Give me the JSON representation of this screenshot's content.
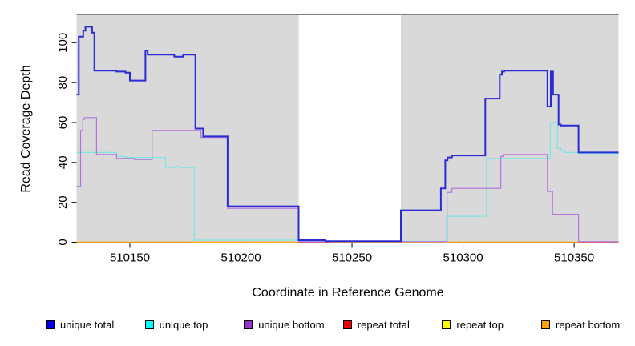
{
  "figure": {
    "background": "#ffffff",
    "plot_background": "#d9d9d9",
    "gap_background": "#ffffff",
    "top_border_color": "#808080"
  },
  "chart_data": {
    "type": "line",
    "title": "",
    "xlabel": "Coordinate in Reference Genome",
    "ylabel": "Read Coverage Depth",
    "xlim": [
      510126,
      510370
    ],
    "ylim": [
      0,
      114
    ],
    "grid": false,
    "legend_position": "bottom",
    "x_ticks": [
      510150,
      510200,
      510250,
      510300,
      510350
    ],
    "y_ticks": [
      0,
      20,
      40,
      60,
      80,
      100
    ],
    "no_data_gap": {
      "from": 510226,
      "to": 510272
    },
    "series": [
      {
        "name": "repeat top",
        "color": "#ffff33",
        "width": 1.2,
        "points": [
          [
            510126,
            0
          ],
          [
            510370,
            0
          ]
        ]
      },
      {
        "name": "repeat total",
        "color": "#e05555",
        "width": 1.2,
        "points": [
          [
            510126,
            0
          ],
          [
            510370,
            0
          ]
        ]
      },
      {
        "name": "repeat bottom",
        "color": "#ffa514",
        "width": 1.5,
        "points": [
          [
            510126,
            0
          ],
          [
            510226,
            0
          ],
          null,
          [
            510240,
            0
          ],
          [
            510352,
            0
          ]
        ]
      },
      {
        "name": "unique top",
        "color": "#7ae6e6",
        "width": 1.2,
        "points": [
          [
            510126,
            45
          ],
          [
            510144,
            45
          ],
          [
            510144,
            43
          ],
          [
            510148,
            43
          ],
          [
            510148,
            42.5
          ],
          [
            510166,
            42.5
          ],
          [
            510166,
            37.5
          ],
          [
            510170.5,
            37.5
          ],
          [
            510170.5,
            38
          ],
          [
            510172.5,
            38
          ],
          [
            510172.5,
            37.5
          ],
          [
            510179,
            37.5
          ],
          [
            510179,
            1
          ],
          [
            510226,
            1
          ],
          [
            510226,
            0.4
          ],
          [
            510292.5,
            0.4
          ],
          [
            510292.5,
            13
          ],
          [
            510310.5,
            13
          ],
          [
            510310.5,
            42
          ],
          [
            510339.3,
            42
          ],
          [
            510339.3,
            60
          ],
          [
            510342.5,
            60
          ],
          [
            510342.5,
            47
          ],
          [
            510344,
            47
          ],
          [
            510344,
            46
          ],
          [
            510346,
            46
          ],
          [
            510346,
            45
          ],
          [
            510352,
            45
          ],
          [
            510352,
            44.5
          ],
          [
            510370,
            44.5
          ]
        ]
      },
      {
        "name": "unique bottom",
        "color": "#b273de",
        "width": 1.2,
        "points": [
          [
            510126,
            28
          ],
          [
            510127.8,
            28
          ],
          [
            510127.8,
            56
          ],
          [
            510128.8,
            56
          ],
          [
            510128.8,
            61.5
          ],
          [
            510129.5,
            61.5
          ],
          [
            510129.5,
            62.5
          ],
          [
            510135,
            62.5
          ],
          [
            510135,
            44
          ],
          [
            510144,
            44
          ],
          [
            510144,
            42
          ],
          [
            510152,
            42
          ],
          [
            510152,
            41.5
          ],
          [
            510160,
            41.5
          ],
          [
            510160,
            56
          ],
          [
            510182,
            56
          ],
          [
            510182,
            52.5
          ],
          [
            510194,
            52.5
          ],
          [
            510194,
            17
          ],
          [
            510226,
            17
          ],
          [
            510226,
            0.3
          ],
          [
            510292.8,
            0.3
          ],
          [
            510292.8,
            25
          ],
          [
            510295,
            25
          ],
          [
            510295,
            27
          ],
          [
            510317,
            27
          ],
          [
            510317,
            43
          ],
          [
            510318,
            43
          ],
          [
            510318,
            44
          ],
          [
            510338,
            44
          ],
          [
            510338,
            25.5
          ],
          [
            510340.3,
            25.5
          ],
          [
            510340.3,
            14
          ],
          [
            510352,
            14
          ],
          [
            510352,
            0.3
          ],
          [
            510370,
            0.3
          ]
        ]
      },
      {
        "name": "unique total",
        "color": "#2b2bd5",
        "width": 2,
        "points": [
          [
            510126,
            74
          ],
          [
            510127,
            74
          ],
          [
            510127,
            103
          ],
          [
            510129,
            103
          ],
          [
            510129,
            106
          ],
          [
            510130,
            106
          ],
          [
            510130,
            108
          ],
          [
            510133,
            108
          ],
          [
            510133,
            105
          ],
          [
            510134,
            105
          ],
          [
            510134,
            86
          ],
          [
            510144,
            86
          ],
          [
            510144,
            85.5
          ],
          [
            510148,
            85.5
          ],
          [
            510148,
            85
          ],
          [
            510150,
            85
          ],
          [
            510150,
            81
          ],
          [
            510157,
            81
          ],
          [
            510157,
            96
          ],
          [
            510158,
            96
          ],
          [
            510158,
            94
          ],
          [
            510170,
            94
          ],
          [
            510170,
            93
          ],
          [
            510174,
            93
          ],
          [
            510174,
            94
          ],
          [
            510179.5,
            94
          ],
          [
            510179.5,
            57
          ],
          [
            510183,
            57
          ],
          [
            510183,
            53
          ],
          [
            510194,
            53
          ],
          [
            510194,
            18
          ],
          [
            510226,
            18
          ],
          [
            510226,
            1
          ],
          [
            510238,
            1
          ],
          [
            510238,
            0.5
          ],
          [
            510272,
            0.5
          ],
          [
            510272,
            16
          ],
          [
            510290,
            16
          ],
          [
            510290,
            27
          ],
          [
            510292,
            27
          ],
          [
            510292,
            41
          ],
          [
            510293,
            41
          ],
          [
            510293,
            42.5
          ],
          [
            510295,
            42.5
          ],
          [
            510295,
            43.5
          ],
          [
            510310,
            43.5
          ],
          [
            510310,
            72
          ],
          [
            510316.5,
            72
          ],
          [
            510316.5,
            84
          ],
          [
            510317.5,
            84
          ],
          [
            510317.5,
            85.5
          ],
          [
            510318.5,
            85.5
          ],
          [
            510318.5,
            86
          ],
          [
            510338,
            86
          ],
          [
            510338,
            68
          ],
          [
            510339.5,
            68
          ],
          [
            510339.5,
            85.5
          ],
          [
            510340.5,
            85.5
          ],
          [
            510340.5,
            74
          ],
          [
            510343,
            74
          ],
          [
            510343,
            59
          ],
          [
            510344,
            59
          ],
          [
            510344,
            58.5
          ],
          [
            510352,
            58.5
          ],
          [
            510352,
            45
          ],
          [
            510370,
            45
          ]
        ]
      }
    ],
    "legend": [
      {
        "label": "unique total",
        "color": "#0000ee"
      },
      {
        "label": "unique top",
        "color": "#00ffff"
      },
      {
        "label": "unique bottom",
        "color": "#9932cc"
      },
      {
        "label": "repeat total",
        "color": "#ee0000"
      },
      {
        "label": "repeat top",
        "color": "#ffff00"
      },
      {
        "label": "repeat bottom",
        "color": "#ffa500"
      }
    ]
  }
}
